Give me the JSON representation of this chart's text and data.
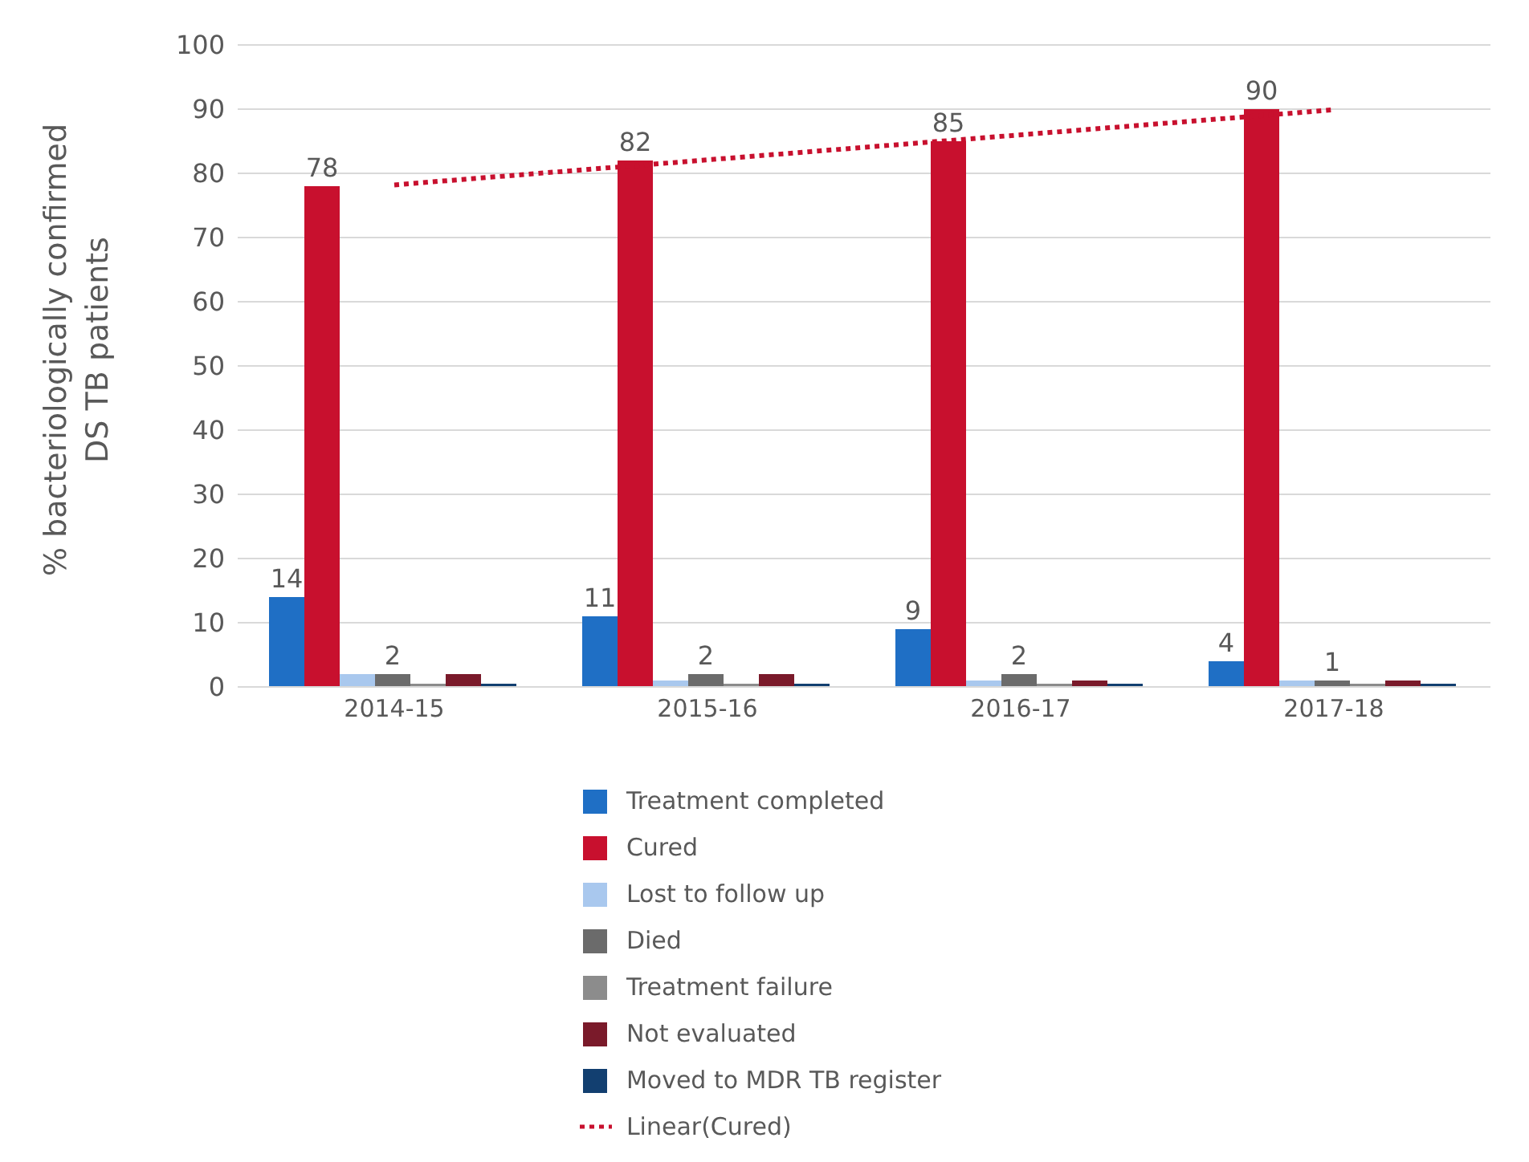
{
  "chart_data": {
    "type": "bar",
    "ylabel": "% bacteriologically  confirmed DS TB patients",
    "categories": [
      "2014-15",
      "2015-16",
      "2016-17",
      "2017-18"
    ],
    "series": [
      {
        "name": "Treatment completed",
        "color": "#1f6fc5",
        "values": [
          14,
          11,
          9,
          4
        ],
        "value_labels": [
          "14",
          "11",
          "9",
          "4"
        ]
      },
      {
        "name": "Cured",
        "color": "#c8102e",
        "values": [
          78,
          82,
          85,
          90
        ],
        "value_labels": [
          "78",
          "82",
          "85",
          "90"
        ]
      },
      {
        "name": "Lost to follow up",
        "color": "#a9c8ee",
        "values": [
          2,
          1,
          1,
          1
        ]
      },
      {
        "name": "Died",
        "color": "#6b6b6b",
        "values": [
          2,
          2,
          2,
          1
        ],
        "value_labels": [
          "2",
          "2",
          "2",
          "1"
        ]
      },
      {
        "name": "Treatment failure",
        "color": "#8c8c8c",
        "values": [
          0.5,
          0.5,
          0.5,
          0.5
        ]
      },
      {
        "name": "Not evaluated",
        "color": "#7a1a2a",
        "values": [
          2,
          2,
          1,
          1
        ]
      },
      {
        "name": "Moved to MDR TB register",
        "color": "#123f70",
        "values": [
          0.5,
          0.5,
          0.5,
          0.5
        ]
      },
      {
        "name": "Linear(Cured)",
        "type": "line",
        "color": "#c8102e",
        "line_style": "dotted",
        "marker": "none",
        "values": [
          78.2,
          82.1,
          86,
          89.9
        ]
      }
    ],
    "ylim": [
      0,
      100
    ],
    "yticks": [
      0,
      10,
      20,
      30,
      40,
      50,
      60,
      70,
      80,
      90,
      100
    ],
    "grid": "y",
    "legend": "bottom"
  }
}
